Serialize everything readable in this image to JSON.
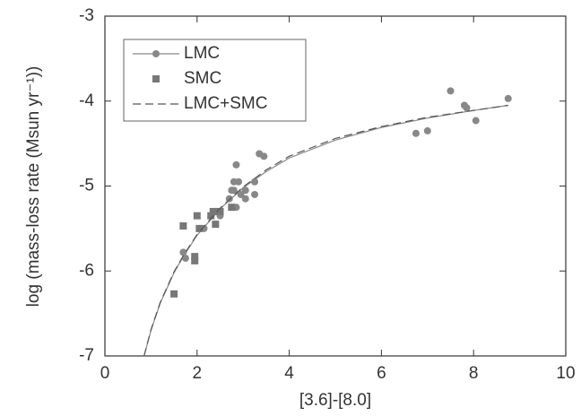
{
  "chart_data": {
    "type": "scatter",
    "xlabel": "[3.6]-[8.0]",
    "ylabel": "log (mass-loss rate (Msun yr⁻¹))",
    "xlim": [
      0,
      10
    ],
    "xticks": [
      0,
      2,
      4,
      6,
      8,
      10
    ],
    "ylim": [
      -7,
      -3
    ],
    "yticks": [
      -7,
      -6,
      -5,
      -4,
      -3
    ],
    "legend": "upper left",
    "series": [
      {
        "name": "LMC",
        "color": "#888888",
        "marker": "circle",
        "x": [
          1.7,
          1.75,
          2.05,
          2.15,
          2.4,
          2.5,
          2.7,
          2.75,
          2.8,
          2.85,
          2.9,
          2.8,
          2.85,
          2.95,
          3.05,
          3.05,
          3.25,
          3.25,
          3.35,
          3.45,
          6.75,
          7.0,
          7.5,
          7.8,
          7.85,
          8.05,
          8.75
        ],
        "values": [
          -5.78,
          -5.85,
          -5.5,
          -5.5,
          -5.3,
          -5.35,
          -5.15,
          -5.05,
          -4.95,
          -4.75,
          -4.95,
          -5.05,
          -5.25,
          -5.1,
          -5.05,
          -5.15,
          -4.95,
          -5.1,
          -4.62,
          -4.65,
          -4.38,
          -4.35,
          -3.88,
          -4.05,
          -4.08,
          -4.23,
          -3.97
        ],
        "fit": {
          "x": [
            0.85,
            1.0,
            1.2,
            1.5,
            1.7,
            2,
            2.5,
            3,
            3.5,
            4,
            5,
            6,
            7,
            8,
            8.75
          ],
          "values": [
            -7,
            -6.7,
            -6.38,
            -6.02,
            -5.83,
            -5.58,
            -5.27,
            -5.02,
            -4.83,
            -4.67,
            -4.46,
            -4.31,
            -4.2,
            -4.11,
            -4.05
          ]
        }
      },
      {
        "name": "SMC",
        "color": "#777777",
        "marker": "square",
        "x": [
          1.5,
          1.7,
          1.95,
          1.95,
          2.0,
          2.05,
          2.3,
          2.35,
          2.4,
          2.5,
          2.75
        ],
        "values": [
          -6.27,
          -5.47,
          -5.83,
          -5.88,
          -5.35,
          -5.5,
          -5.35,
          -5.3,
          -5.45,
          -5.3,
          -5.25
        ]
      },
      {
        "name": "LMC+SMC",
        "color": "#555555",
        "marker": "dashed",
        "x": [
          0.85,
          1.0,
          1.2,
          1.5,
          1.7,
          2,
          2.5,
          3,
          3.5,
          4,
          5,
          6,
          7,
          8,
          8.75
        ],
        "values": [
          -7,
          -6.69,
          -6.37,
          -6.01,
          -5.82,
          -5.57,
          -5.26,
          -5.01,
          -4.81,
          -4.65,
          -4.44,
          -4.3,
          -4.19,
          -4.11,
          -4.05
        ]
      }
    ]
  }
}
